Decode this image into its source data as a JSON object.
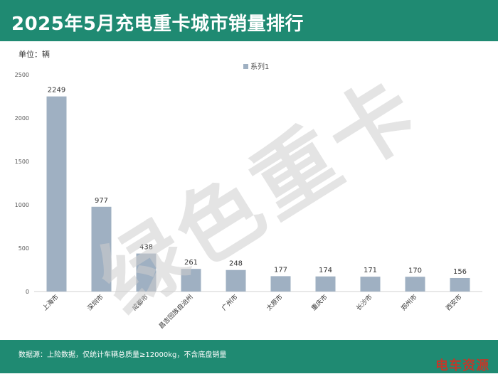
{
  "header": {
    "title": "2025年5月充电重卡城市销量排行"
  },
  "unit_label": "单位：辆",
  "watermark": "绿色重卡",
  "footer": {
    "note": "数据源：上险数据，仅统计车辆总质量≥12000kg，不含底盘销量",
    "logo": "电车资源"
  },
  "colors": {
    "header_bg": "#1f8a72",
    "bar": "#9fb0c2",
    "logo": "#c0392b"
  },
  "chart_data": {
    "type": "bar",
    "title": "2025年5月充电重卡城市销量排行",
    "ylabel": "单位：辆",
    "categories": [
      "上海市",
      "深圳市",
      "成都市",
      "昌吉回族自治州",
      "广州市",
      "太原市",
      "重庆市",
      "长沙市",
      "郑州市",
      "西安市"
    ],
    "series": [
      {
        "name": "系列1",
        "values": [
          2249,
          977,
          438,
          261,
          248,
          177,
          174,
          171,
          170,
          156
        ]
      }
    ],
    "ylim": [
      0,
      2500
    ],
    "yticks": [
      0,
      500,
      1000,
      1500,
      2000,
      2500
    ],
    "legend": "top-center",
    "grid": false
  }
}
